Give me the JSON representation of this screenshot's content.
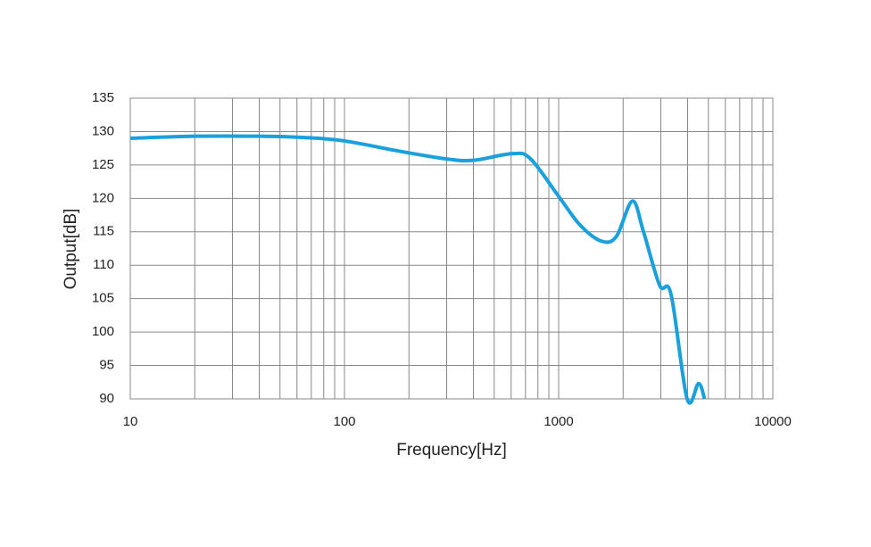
{
  "chart_data": {
    "type": "line",
    "x_label": "Frequency[Hz]",
    "y_label": "Output[dB]",
    "x": [
      10,
      20,
      40,
      65,
      100,
      185,
      300,
      400,
      610,
      740,
      1000,
      1260,
      1585,
      1860,
      2210,
      2490,
      2960,
      3350,
      3980,
      4500,
      4800
    ],
    "series": [
      {
        "name": "Output",
        "color": "#1aa0dc",
        "values": [
          129.0,
          129.3,
          129.3,
          129.1,
          128.6,
          127.0,
          125.9,
          125.7,
          126.7,
          125.9,
          120.3,
          116.0,
          113.6,
          114.3,
          119.6,
          115.0,
          107.0,
          105.6,
          90.0,
          92.3,
          90.0
        ]
      }
    ],
    "xlim": [
      10,
      10000
    ],
    "xticks": [
      10,
      100,
      1000,
      10000
    ],
    "xscale": "log",
    "minor_grid": true,
    "ylim": [
      90,
      135
    ],
    "yticks": [
      90,
      95,
      100,
      105,
      110,
      115,
      120,
      125,
      130,
      135
    ],
    "grid": true
  }
}
